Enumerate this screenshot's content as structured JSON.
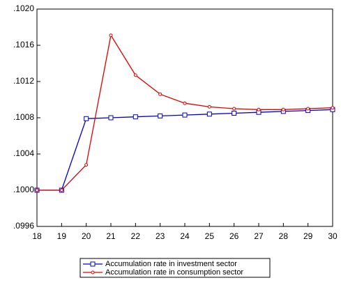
{
  "chart_data": {
    "type": "line",
    "x": [
      18,
      19,
      20,
      21,
      22,
      23,
      24,
      25,
      26,
      27,
      28,
      29,
      30
    ],
    "xlim": [
      18,
      30
    ],
    "xticks": [
      18,
      19,
      20,
      21,
      22,
      23,
      24,
      25,
      26,
      27,
      28,
      29,
      30
    ],
    "ylim": [
      0.0996,
      0.102
    ],
    "yticks": [
      {
        "value": 0.0996,
        "label": ".0996"
      },
      {
        "value": 0.1,
        "label": ".1000"
      },
      {
        "value": 0.1004,
        "label": ".1004"
      },
      {
        "value": 0.1008,
        "label": ".1008"
      },
      {
        "value": 0.1012,
        "label": ".1012"
      },
      {
        "value": 0.1016,
        "label": ".1016"
      },
      {
        "value": 0.102,
        "label": ".1020"
      }
    ],
    "grid": false,
    "series": [
      {
        "name": "Accumulation rate in investment sector",
        "color": "#0000cc",
        "marker": "square",
        "values": [
          0.1,
          0.1,
          0.10079,
          0.1008,
          0.10081,
          0.10082,
          0.10083,
          0.10084,
          0.10085,
          0.10086,
          0.10087,
          0.10088,
          0.10089
        ]
      },
      {
        "name": "Accumulation rate in consumption sector",
        "color": "#e00000",
        "marker": "circle",
        "values": [
          0.1,
          0.1,
          0.10028,
          0.10171,
          0.10127,
          0.10106,
          0.10096,
          0.10092,
          0.1009,
          0.10089,
          0.10089,
          0.1009,
          0.10091
        ]
      }
    ]
  }
}
